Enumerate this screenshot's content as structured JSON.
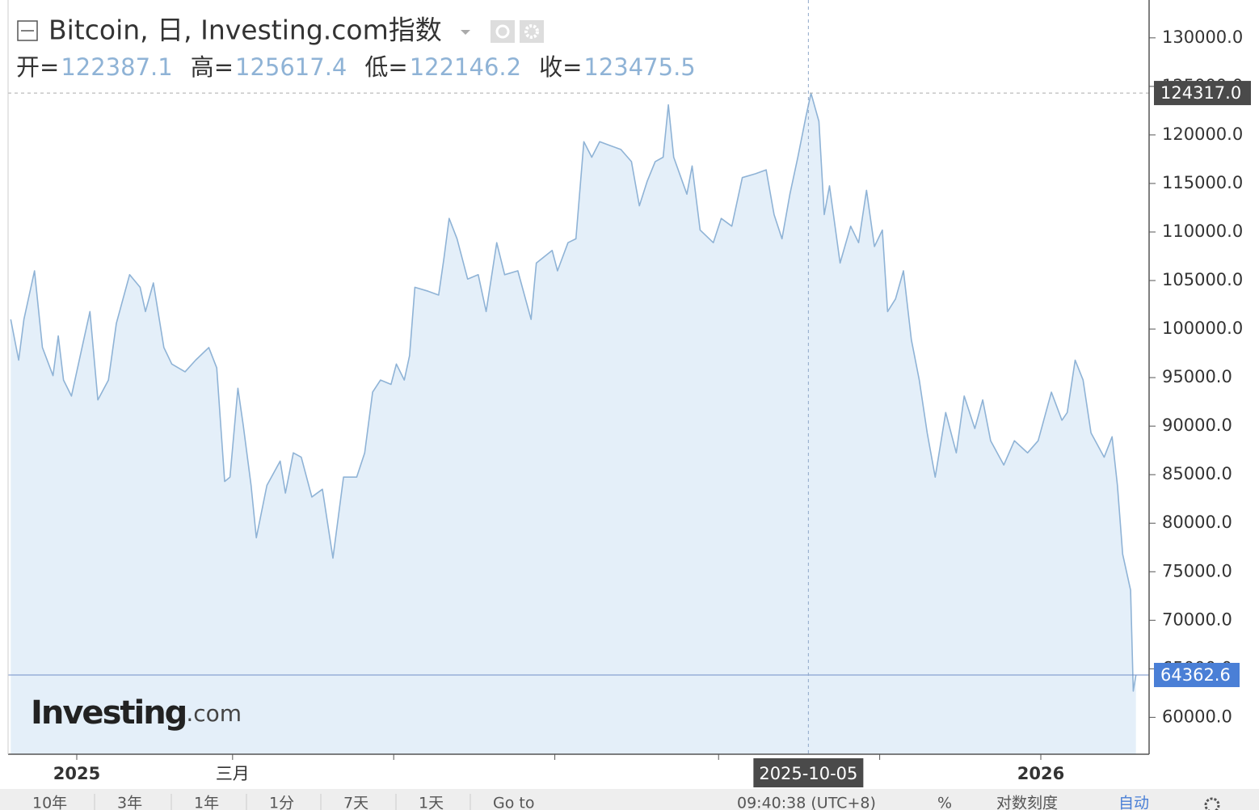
{
  "chart_data": {
    "type": "area",
    "title": "Bitcoin, 日, Investing.com指数",
    "ohlc": [
      {
        "label": "开=",
        "value": "122387.1"
      },
      {
        "label": "高=",
        "value": "125617.4"
      },
      {
        "label": "低=",
        "value": "122146.2"
      },
      {
        "label": "收=",
        "value": "123475.5"
      }
    ],
    "x": [
      "2024-12-07",
      "2024-12-10",
      "2024-12-12",
      "2024-12-16",
      "2024-12-19",
      "2024-12-23",
      "2024-12-25",
      "2024-12-27",
      "2024-12-30",
      "2025-01-03",
      "2025-01-06",
      "2025-01-09",
      "2025-01-13",
      "2025-01-16",
      "2025-01-21",
      "2025-01-25",
      "2025-01-27",
      "2025-01-30",
      "2025-02-03",
      "2025-02-06",
      "2025-02-11",
      "2025-02-15",
      "2025-02-20",
      "2025-02-23",
      "2025-02-26",
      "2025-02-28",
      "2025-03-03",
      "2025-03-05",
      "2025-03-08",
      "2025-03-10",
      "2025-03-14",
      "2025-03-19",
      "2025-03-21",
      "2025-03-24",
      "2025-03-27",
      "2025-03-31",
      "2025-04-04",
      "2025-04-08",
      "2025-04-12",
      "2025-04-17",
      "2025-04-20",
      "2025-04-23",
      "2025-04-26",
      "2025-04-30",
      "2025-05-02",
      "2025-05-05",
      "2025-05-07",
      "2025-05-09",
      "2025-05-14",
      "2025-05-18",
      "2025-05-20",
      "2025-05-22",
      "2025-05-25",
      "2025-05-29",
      "2025-06-02",
      "2025-06-05",
      "2025-06-09",
      "2025-06-12",
      "2025-06-17",
      "2025-06-22",
      "2025-06-24",
      "2025-06-30",
      "2025-07-02",
      "2025-07-06",
      "2025-07-09",
      "2025-07-12",
      "2025-07-15",
      "2025-07-18",
      "2025-07-22",
      "2025-07-26",
      "2025-07-30",
      "2025-08-02",
      "2025-08-05",
      "2025-08-08",
      "2025-08-11",
      "2025-08-13",
      "2025-08-15",
      "2025-08-20",
      "2025-08-22",
      "2025-08-25",
      "2025-08-30",
      "2025-09-02",
      "2025-09-06",
      "2025-09-10",
      "2025-09-15",
      "2025-09-19",
      "2025-09-22",
      "2025-09-25",
      "2025-09-28",
      "2025-10-01",
      "2025-10-04",
      "2025-10-06",
      "2025-10-09",
      "2025-10-11",
      "2025-10-13",
      "2025-10-17",
      "2025-10-21",
      "2025-10-24",
      "2025-10-27",
      "2025-10-30",
      "2025-11-02",
      "2025-11-04",
      "2025-11-07",
      "2025-11-10",
      "2025-11-13",
      "2025-11-16",
      "2025-11-19",
      "2025-11-22",
      "2025-11-26",
      "2025-11-30",
      "2025-12-03",
      "2025-12-07",
      "2025-12-10",
      "2025-12-13",
      "2025-12-18",
      "2025-12-22",
      "2025-12-27",
      "2025-12-31",
      "2026-01-05",
      "2026-01-09",
      "2026-01-11",
      "2026-01-14",
      "2026-01-17",
      "2026-01-20",
      "2026-01-25",
      "2026-01-28",
      "2026-01-30",
      "2026-02-01",
      "2026-02-04",
      "2026-02-05",
      "2026-02-06"
    ],
    "series": [
      {
        "color": "#8fb3d6",
        "fill": "#e4eff9",
        "values": [
          101000,
          96800,
          101000,
          106000,
          98100,
          95200,
          99300,
          94750,
          93100,
          98100,
          101800,
          92700,
          94750,
          100600,
          105600,
          104300,
          101800,
          104750,
          98100,
          96400,
          95600,
          96800,
          98100,
          96000,
          84300,
          84750,
          93900,
          90150,
          83900,
          78500,
          83900,
          86400,
          83100,
          87250,
          86800,
          82700,
          83500,
          76400,
          84750,
          84750,
          87250,
          93500,
          94750,
          94300,
          96400,
          94750,
          97250,
          104300,
          103900,
          103500,
          107250,
          111400,
          109300,
          105150,
          105600,
          101800,
          108900,
          105600,
          106000,
          101000,
          106800,
          108100,
          106000,
          108900,
          109300,
          119300,
          117700,
          119300,
          118900,
          118500,
          117250,
          112700,
          115250,
          117250,
          117700,
          123100,
          117700,
          113900,
          116800,
          110200,
          108900,
          111400,
          110600,
          115600,
          116000,
          116400,
          111800,
          109300,
          113900,
          117700,
          121800,
          124300,
          121400,
          111800,
          114750,
          106800,
          110600,
          108900,
          114300,
          108500,
          110200,
          101800,
          103100,
          106000,
          98900,
          94750,
          89300,
          84750,
          91400,
          87250,
          93100,
          89750,
          92700,
          88500,
          86000,
          88500,
          87250,
          88500,
          93500,
          90600,
          91400,
          96800,
          94750,
          89300,
          86800,
          88900,
          83900,
          76800,
          73100,
          62700,
          64362.6
        ]
      }
    ],
    "xlim": [
      "2024-12-06",
      "2026-02-11"
    ],
    "xticks": [
      {
        "value": "2025-01-01",
        "label": "2025"
      },
      {
        "value": "2025-03-01",
        "label": "三月"
      },
      {
        "value": "2025-05-01",
        "label": null
      },
      {
        "value": "2025-07-01",
        "label": null
      },
      {
        "value": "2025-09-01",
        "label": null
      },
      {
        "value": "2025-11-01",
        "label": null
      },
      {
        "value": "2026-01-01",
        "label": "2026"
      }
    ],
    "ylim": [
      56200,
      133900
    ],
    "yticks": [
      {
        "value": 60000,
        "label": "60000.0"
      },
      {
        "value": 65000,
        "label": "65000.0"
      },
      {
        "value": 70000,
        "label": "70000.0"
      },
      {
        "value": 75000,
        "label": "75000.0"
      },
      {
        "value": 80000,
        "label": "80000.0"
      },
      {
        "value": 85000,
        "label": "85000.0"
      },
      {
        "value": 90000,
        "label": "90000.0"
      },
      {
        "value": 95000,
        "label": "95000.0"
      },
      {
        "value": 100000,
        "label": "100000.0"
      },
      {
        "value": 105000,
        "label": "105000.0"
      },
      {
        "value": 110000,
        "label": "110000.0"
      },
      {
        "value": 115000,
        "label": "115000.0"
      },
      {
        "value": 120000,
        "label": "120000.0"
      },
      {
        "value": 125000,
        "label": "125000.0"
      },
      {
        "value": 130000,
        "label": "130000.0"
      }
    ],
    "crosshair": {
      "x": "2025-10-05",
      "y": {
        "value": 124317,
        "label": "124317.0"
      }
    },
    "logo": [
      "Investing",
      ".com"
    ]
  },
  "toolbar": [
    "10年",
    "3年",
    "1年",
    "1分",
    "7天",
    "1天",
    "Go to",
    "09:40:38 (UTC+8)",
    "%",
    "对数刻度",
    "自动"
  ]
}
